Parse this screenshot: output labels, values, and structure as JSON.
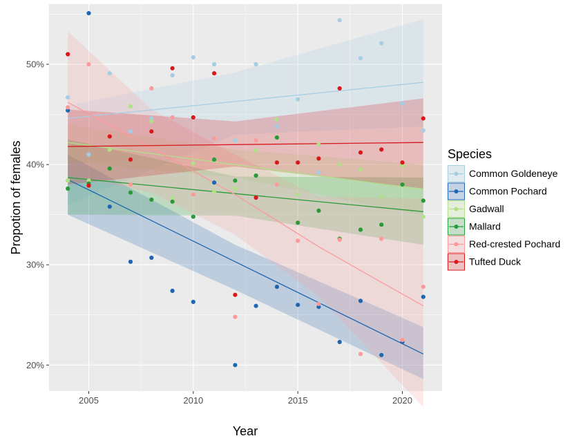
{
  "chart_data": {
    "type": "scatter",
    "xlabel": "Year",
    "ylabel": "Propotion of females",
    "xlim": [
      2003.1,
      2021.9
    ],
    "ylim": [
      17.4,
      56.0
    ],
    "x_ticks": [
      2005,
      2010,
      2015,
      2020
    ],
    "x_tick_labels": [
      "2005",
      "2010",
      "2015",
      "2020"
    ],
    "y_ticks": [
      20,
      30,
      40,
      50
    ],
    "y_tick_labels": [
      "20%",
      "30%",
      "40%",
      "50%"
    ],
    "grid": true,
    "panel_background": "#ebebeb",
    "legend": {
      "title": "Species",
      "position": "right"
    },
    "series": [
      {
        "name": "Common Goldeneye",
        "color": "#a6cee3",
        "points": [
          [
            2004,
            46.7
          ],
          [
            2005,
            41.0
          ],
          [
            2006,
            49.1
          ],
          [
            2007,
            43.3
          ],
          [
            2008,
            44.6
          ],
          [
            2009,
            48.9
          ],
          [
            2010,
            50.7
          ],
          [
            2011,
            50.0
          ],
          [
            2012,
            42.4
          ],
          [
            2013,
            50.0
          ],
          [
            2014,
            43.8
          ],
          [
            2015,
            46.5
          ],
          [
            2016,
            39.2
          ],
          [
            2017,
            54.4
          ],
          [
            2018,
            50.6
          ],
          [
            2019,
            52.1
          ],
          [
            2020,
            46.1
          ],
          [
            2021,
            43.4
          ]
        ],
        "fit": [
          [
            2004,
            44.6
          ],
          [
            2021,
            48.2
          ]
        ],
        "band_upper": [
          [
            2004,
            45.9
          ],
          [
            2012,
            49.2
          ],
          [
            2021,
            54.5
          ]
        ],
        "band_lower": [
          [
            2004,
            36.0
          ],
          [
            2012,
            43.0
          ],
          [
            2021,
            43.8
          ]
        ]
      },
      {
        "name": "Common Pochard",
        "color": "#1f66b0",
        "points": [
          [
            2004,
            45.4
          ],
          [
            2005,
            55.1
          ],
          [
            2006,
            35.8
          ],
          [
            2007,
            30.3
          ],
          [
            2008,
            30.7
          ],
          [
            2009,
            27.4
          ],
          [
            2010,
            26.3
          ],
          [
            2011,
            38.2
          ],
          [
            2012,
            20.0
          ],
          [
            2013,
            25.9
          ],
          [
            2014,
            27.8
          ],
          [
            2015,
            26.0
          ],
          [
            2016,
            25.8
          ],
          [
            2017,
            22.3
          ],
          [
            2018,
            26.4
          ],
          [
            2019,
            21.0
          ],
          [
            2020,
            22.3
          ],
          [
            2021,
            26.8
          ]
        ],
        "fit": [
          [
            2004,
            38.5
          ],
          [
            2021,
            21.1
          ]
        ],
        "band_upper": [
          [
            2004,
            41.0
          ],
          [
            2012,
            32.0
          ],
          [
            2021,
            23.8
          ]
        ],
        "band_lower": [
          [
            2004,
            35.0
          ],
          [
            2012,
            27.5
          ],
          [
            2021,
            18.6
          ]
        ]
      },
      {
        "name": "Gadwall",
        "color": "#b2df8a",
        "points": [
          [
            2004,
            38.4
          ],
          [
            2005,
            38.4
          ],
          [
            2006,
            41.5
          ],
          [
            2007,
            45.8
          ],
          [
            2008,
            44.3
          ],
          [
            2009,
            36.7
          ],
          [
            2010,
            40.1
          ],
          [
            2011,
            37.3
          ],
          [
            2012,
            37.6
          ],
          [
            2013,
            41.4
          ],
          [
            2014,
            44.5
          ],
          [
            2015,
            37.0
          ],
          [
            2016,
            42.0
          ],
          [
            2017,
            40.0
          ],
          [
            2018,
            39.5
          ],
          [
            2019,
            36.8
          ],
          [
            2020,
            39.9
          ],
          [
            2021,
            34.8
          ]
        ],
        "fit": [
          [
            2004,
            42.2
          ],
          [
            2021,
            37.5
          ]
        ],
        "band_upper": [
          [
            2004,
            44.0
          ],
          [
            2012,
            41.5
          ],
          [
            2021,
            40.0
          ]
        ],
        "band_lower": [
          [
            2004,
            40.3
          ],
          [
            2012,
            38.7
          ],
          [
            2021,
            34.9
          ]
        ]
      },
      {
        "name": "Mallard",
        "color": "#2a9a38",
        "points": [
          [
            2004,
            37.6
          ],
          [
            2005,
            38.1
          ],
          [
            2006,
            39.6
          ],
          [
            2007,
            37.2
          ],
          [
            2008,
            36.5
          ],
          [
            2009,
            36.3
          ],
          [
            2010,
            34.8
          ],
          [
            2011,
            40.5
          ],
          [
            2012,
            38.4
          ],
          [
            2013,
            38.9
          ],
          [
            2014,
            42.7
          ],
          [
            2015,
            34.2
          ],
          [
            2016,
            35.4
          ],
          [
            2017,
            32.6
          ],
          [
            2018,
            33.5
          ],
          [
            2019,
            34.0
          ],
          [
            2020,
            38.0
          ],
          [
            2021,
            36.4
          ]
        ],
        "fit": [
          [
            2004,
            38.7
          ],
          [
            2021,
            35.3
          ]
        ],
        "band_upper": [
          [
            2004,
            42.5
          ],
          [
            2012,
            38.8
          ],
          [
            2021,
            38.7
          ]
        ],
        "band_lower": [
          [
            2004,
            35.0
          ],
          [
            2012,
            34.9
          ],
          [
            2021,
            32.0
          ]
        ]
      },
      {
        "name": "Red-crested Pochard",
        "color": "#fb9a99",
        "points": [
          [
            2004,
            45.7
          ],
          [
            2005,
            50.0
          ],
          [
            2006,
            42.9
          ],
          [
            2007,
            38.0
          ],
          [
            2008,
            47.6
          ],
          [
            2009,
            44.7
          ],
          [
            2010,
            37.0
          ],
          [
            2011,
            42.6
          ],
          [
            2012,
            24.8
          ],
          [
            2013,
            42.4
          ],
          [
            2014,
            38.0
          ],
          [
            2015,
            32.4
          ],
          [
            2016,
            26.1
          ],
          [
            2017,
            32.5
          ],
          [
            2018,
            21.1
          ],
          [
            2019,
            32.6
          ],
          [
            2020,
            22.5
          ],
          [
            2021,
            27.8
          ]
        ],
        "fit": [
          [
            2004,
            46.2
          ],
          [
            2008,
            41.7
          ],
          [
            2012,
            37.0
          ],
          [
            2016,
            31.8
          ],
          [
            2021,
            25.9
          ]
        ],
        "band_upper": [
          [
            2004,
            53.3
          ],
          [
            2008,
            45.5
          ],
          [
            2012,
            41.0
          ],
          [
            2016,
            36.8
          ],
          [
            2021,
            36.6
          ]
        ],
        "band_lower": [
          [
            2004,
            39.0
          ],
          [
            2008,
            37.2
          ],
          [
            2012,
            33.0
          ],
          [
            2016,
            26.8
          ],
          [
            2021,
            15.8
          ]
        ]
      },
      {
        "name": "Tufted Duck",
        "color": "#d7191c",
        "points": [
          [
            2004,
            51.0
          ],
          [
            2005,
            37.9
          ],
          [
            2006,
            42.8
          ],
          [
            2007,
            40.5
          ],
          [
            2008,
            43.3
          ],
          [
            2009,
            49.6
          ],
          [
            2010,
            44.7
          ],
          [
            2011,
            49.1
          ],
          [
            2012,
            27.0
          ],
          [
            2013,
            36.7
          ],
          [
            2014,
            40.2
          ],
          [
            2015,
            40.2
          ],
          [
            2016,
            40.6
          ],
          [
            2017,
            47.6
          ],
          [
            2018,
            41.2
          ],
          [
            2019,
            41.5
          ],
          [
            2020,
            40.2
          ],
          [
            2021,
            44.6
          ]
        ],
        "fit": [
          [
            2004,
            41.8
          ],
          [
            2021,
            42.2
          ]
        ],
        "band_upper": [
          [
            2004,
            45.5
          ],
          [
            2012,
            44.3
          ],
          [
            2021,
            46.6
          ]
        ],
        "band_lower": [
          [
            2004,
            38.0
          ],
          [
            2012,
            39.8
          ],
          [
            2021,
            37.6
          ]
        ]
      }
    ]
  }
}
